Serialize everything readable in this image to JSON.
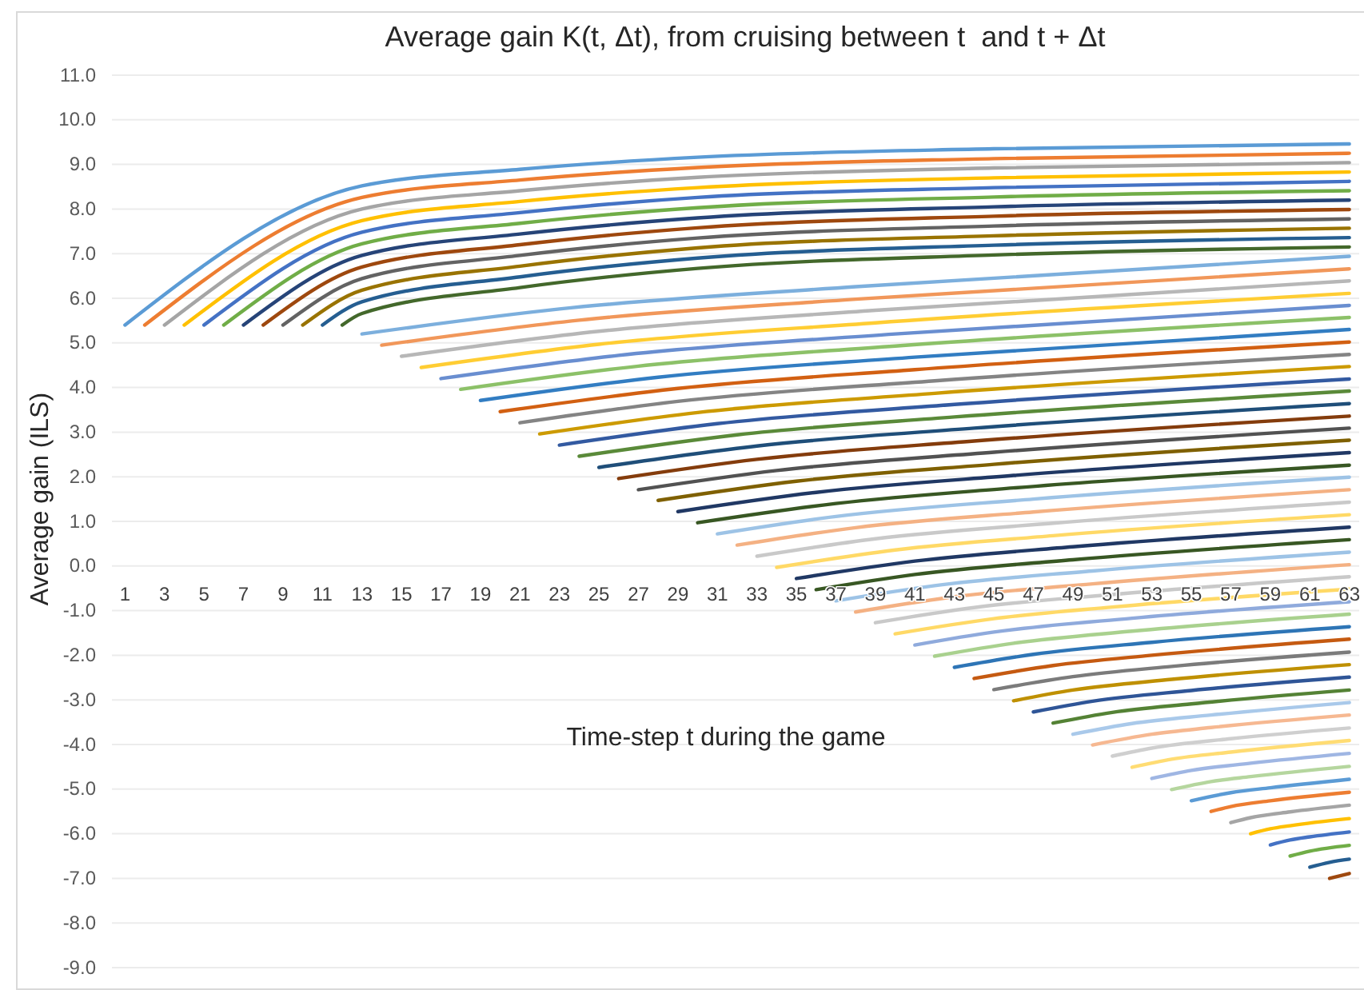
{
  "chart_data": {
    "type": "line",
    "title": "Average gain K(t, Δt), from cruising between t  and t + Δt",
    "xlabel": "Time-step t during the game",
    "ylabel": "Average gain  (ILS)",
    "xlim": [
      0.5,
      63.5
    ],
    "xticks": [
      1,
      3,
      5,
      7,
      9,
      11,
      13,
      15,
      17,
      19,
      21,
      23,
      25,
      27,
      29,
      31,
      33,
      35,
      37,
      39,
      41,
      43,
      45,
      47,
      49,
      51,
      53,
      55,
      57,
      59,
      61,
      63
    ],
    "ylim": [
      -9,
      11
    ],
    "yticks": [
      {
        "value": -9,
        "label": "-9.0"
      },
      {
        "value": -8,
        "label": "-8.0"
      },
      {
        "value": -7,
        "label": "-7.0"
      },
      {
        "value": -6,
        "label": "-6.0"
      },
      {
        "value": -5,
        "label": "-5.0"
      },
      {
        "value": -4,
        "label": "-4.0"
      },
      {
        "value": -3,
        "label": "-3.0"
      },
      {
        "value": -2,
        "label": "-2.0"
      },
      {
        "value": -1,
        "label": "-1.0"
      },
      {
        "value": 0,
        "label": "0.0"
      },
      {
        "value": 1,
        "label": "1.0"
      },
      {
        "value": 2,
        "label": "2.0"
      },
      {
        "value": 3,
        "label": "3.0"
      },
      {
        "value": 4,
        "label": "4.0"
      },
      {
        "value": 5,
        "label": "5.0"
      },
      {
        "value": 6,
        "label": "6.0"
      },
      {
        "value": 7,
        "label": "7.0"
      },
      {
        "value": 8,
        "label": "8.0"
      },
      {
        "value": 9,
        "label": "9.0"
      },
      {
        "value": 10,
        "label": "10.0"
      },
      {
        "value": 11,
        "label": "11.0"
      }
    ],
    "grid": "y",
    "series": [
      {
        "color": "#5b9bd5",
        "x": [
          1,
          13,
          21,
          30,
          45,
          63
        ],
        "values": [
          5.4,
          8.52,
          8.89,
          9.16,
          9.35,
          9.46
        ]
      },
      {
        "color": "#ed7d31",
        "x": [
          2,
          13,
          21,
          30,
          45,
          63
        ],
        "values": [
          5.4,
          8.26,
          8.65,
          8.93,
          9.13,
          9.25
        ]
      },
      {
        "color": "#a5a5a5",
        "x": [
          3,
          13,
          21,
          30,
          45,
          63
        ],
        "values": [
          5.4,
          8.0,
          8.41,
          8.71,
          8.92,
          9.04
        ]
      },
      {
        "color": "#ffc000",
        "x": [
          4,
          13,
          21,
          30,
          45,
          63
        ],
        "values": [
          5.4,
          7.74,
          8.17,
          8.48,
          8.7,
          8.83
        ]
      },
      {
        "color": "#4472c4",
        "x": [
          5,
          13,
          21,
          30,
          45,
          63
        ],
        "values": [
          5.4,
          7.48,
          7.92,
          8.26,
          8.48,
          8.62
        ]
      },
      {
        "color": "#70ad47",
        "x": [
          6,
          13,
          21,
          30,
          45,
          63
        ],
        "values": [
          5.4,
          7.22,
          7.68,
          8.03,
          8.27,
          8.41
        ]
      },
      {
        "color": "#264478",
        "x": [
          7,
          13,
          21,
          30,
          45,
          63
        ],
        "values": [
          5.4,
          6.96,
          7.44,
          7.8,
          8.05,
          8.2
        ]
      },
      {
        "color": "#9e480e",
        "x": [
          8,
          13,
          21,
          30,
          45,
          63
        ],
        "values": [
          5.4,
          6.7,
          7.2,
          7.58,
          7.84,
          7.99
        ]
      },
      {
        "color": "#636363",
        "x": [
          9,
          13,
          21,
          30,
          45,
          63
        ],
        "values": [
          5.4,
          6.44,
          6.96,
          7.35,
          7.62,
          7.78
        ]
      },
      {
        "color": "#997300",
        "x": [
          10,
          13,
          21,
          30,
          45,
          63
        ],
        "values": [
          5.4,
          6.18,
          6.72,
          7.13,
          7.4,
          7.57
        ]
      },
      {
        "color": "#255e91",
        "x": [
          11,
          13,
          21,
          30,
          45,
          63
        ],
        "values": [
          5.4,
          5.92,
          6.48,
          6.9,
          7.19,
          7.36
        ]
      },
      {
        "color": "#43682b",
        "x": [
          12,
          13,
          21,
          30,
          45,
          63
        ],
        "values": [
          5.4,
          5.66,
          6.24,
          6.67,
          6.97,
          7.15
        ]
      },
      {
        "color": "#7cafdd",
        "x": [
          13,
          23,
          38,
          63
        ],
        "values": [
          5.2,
          5.76,
          6.26,
          6.94
        ]
      },
      {
        "color": "#f1975a",
        "x": [
          14,
          24,
          38,
          63
        ],
        "values": [
          4.95,
          5.51,
          5.98,
          6.66
        ]
      },
      {
        "color": "#b7b7b7",
        "x": [
          15,
          25,
          39,
          63
        ],
        "values": [
          4.7,
          5.26,
          5.73,
          6.39
        ]
      },
      {
        "color": "#ffcd33",
        "x": [
          16,
          25,
          39,
          63
        ],
        "values": [
          4.45,
          4.97,
          5.45,
          6.11
        ]
      },
      {
        "color": "#698ed0",
        "x": [
          17,
          26,
          40,
          63
        ],
        "values": [
          4.2,
          4.72,
          5.2,
          5.84
        ]
      },
      {
        "color": "#8cc168",
        "x": [
          18,
          27,
          40,
          63
        ],
        "values": [
          3.96,
          4.48,
          4.93,
          5.57
        ]
      },
      {
        "color": "#327dc2",
        "x": [
          19,
          28,
          41,
          63
        ],
        "values": [
          3.71,
          4.23,
          4.68,
          5.3
        ]
      },
      {
        "color": "#d26012",
        "x": [
          20,
          29,
          41,
          63
        ],
        "values": [
          3.46,
          3.98,
          4.4,
          5.02
        ]
      },
      {
        "color": "#848484",
        "x": [
          21,
          29,
          42,
          63
        ],
        "values": [
          3.21,
          3.69,
          4.15,
          4.74
        ]
      },
      {
        "color": "#cc9a00",
        "x": [
          22,
          30,
          42,
          63
        ],
        "values": [
          2.96,
          3.44,
          3.87,
          4.47
        ]
      },
      {
        "color": "#335aa1",
        "x": [
          23,
          31,
          43,
          63
        ],
        "values": [
          2.71,
          3.19,
          3.62,
          4.19
        ]
      },
      {
        "color": "#5a8a39",
        "x": [
          24,
          32,
          43,
          63
        ],
        "values": [
          2.46,
          2.94,
          3.34,
          3.92
        ]
      },
      {
        "color": "#1f4e79",
        "x": [
          25,
          33,
          44,
          63
        ],
        "values": [
          2.21,
          2.69,
          3.09,
          3.64
        ]
      },
      {
        "color": "#843c0c",
        "x": [
          26,
          33,
          44,
          63
        ],
        "values": [
          1.96,
          2.39,
          2.8,
          3.36
        ]
      },
      {
        "color": "#525252",
        "x": [
          27,
          34,
          45,
          63
        ],
        "values": [
          1.71,
          2.14,
          2.55,
          3.09
        ]
      },
      {
        "color": "#7f6000",
        "x": [
          28,
          35,
          45,
          63
        ],
        "values": [
          1.47,
          1.9,
          2.28,
          2.82
        ]
      },
      {
        "color": "#203864",
        "x": [
          29,
          36,
          46,
          63
        ],
        "values": [
          1.22,
          1.65,
          2.03,
          2.54
        ]
      },
      {
        "color": "#385723",
        "x": [
          30,
          37,
          46,
          63
        ],
        "values": [
          0.97,
          1.4,
          1.75,
          2.26
        ]
      },
      {
        "color": "#9dc3e6",
        "x": [
          31,
          37,
          47,
          63
        ],
        "values": [
          0.72,
          1.11,
          1.5,
          1.99
        ]
      },
      {
        "color": "#f4b183",
        "x": [
          32,
          38,
          47,
          63
        ],
        "values": [
          0.47,
          0.86,
          1.21,
          1.71
        ]
      },
      {
        "color": "#c9c9c9",
        "x": [
          33,
          39,
          48,
          63
        ],
        "values": [
          0.22,
          0.61,
          0.96,
          1.43
        ]
      },
      {
        "color": "#ffd966",
        "x": [
          34,
          40,
          48,
          63
        ],
        "values": [
          -0.03,
          0.36,
          0.68,
          1.15
        ]
      },
      {
        "color": "#203864",
        "x": [
          35,
          41,
          49,
          63
        ],
        "values": [
          -0.28,
          0.11,
          0.43,
          0.87
        ]
      },
      {
        "color": "#385723",
        "x": [
          36,
          41,
          49,
          63
        ],
        "values": [
          -0.53,
          -0.19,
          0.14,
          0.59
        ]
      },
      {
        "color": "#9dc3e6",
        "x": [
          37,
          42,
          50,
          63
        ],
        "values": [
          -0.78,
          -0.44,
          -0.11,
          0.31
        ]
      },
      {
        "color": "#f4b183",
        "x": [
          38,
          43,
          50,
          63
        ],
        "values": [
          -1.03,
          -0.69,
          -0.4,
          0.03
        ]
      },
      {
        "color": "#c9c9c9",
        "x": [
          39,
          44,
          51,
          63
        ],
        "values": [
          -1.27,
          -0.93,
          -0.64,
          -0.24
        ]
      },
      {
        "color": "#ffd966",
        "x": [
          40,
          45,
          51,
          63
        ],
        "values": [
          -1.52,
          -1.18,
          -0.92,
          -0.52
        ]
      },
      {
        "color": "#8faadc",
        "x": [
          41,
          45,
          52,
          63
        ],
        "values": [
          -1.77,
          -1.48,
          -1.17,
          -0.8
        ]
      },
      {
        "color": "#a9d18e",
        "x": [
          42,
          46,
          52,
          63
        ],
        "values": [
          -2.02,
          -1.73,
          -1.46,
          -1.08
        ]
      },
      {
        "color": "#2e75b6",
        "x": [
          43,
          47,
          53,
          63
        ],
        "values": [
          -2.27,
          -1.98,
          -1.71,
          -1.36
        ]
      },
      {
        "color": "#c55a11",
        "x": [
          44,
          48,
          53,
          63
        ],
        "values": [
          -2.52,
          -2.23,
          -2.0,
          -1.64
        ]
      },
      {
        "color": "#7b7b7b",
        "x": [
          45,
          49,
          54,
          63
        ],
        "values": [
          -2.77,
          -2.48,
          -2.25,
          -1.93
        ]
      },
      {
        "color": "#bf9000",
        "x": [
          46,
          49,
          54,
          63
        ],
        "values": [
          -3.02,
          -2.78,
          -2.54,
          -2.21
        ]
      },
      {
        "color": "#2f5597",
        "x": [
          47,
          50,
          55,
          63
        ],
        "values": [
          -3.27,
          -3.03,
          -2.79,
          -2.49
        ]
      },
      {
        "color": "#548235",
        "x": [
          48,
          51,
          55,
          63
        ],
        "values": [
          -3.52,
          -3.28,
          -3.09,
          -2.78
        ]
      },
      {
        "color": "#a9c9ea",
        "x": [
          49,
          52,
          56,
          63
        ],
        "values": [
          -3.77,
          -3.53,
          -3.34,
          -3.06
        ]
      },
      {
        "color": "#f6b891",
        "x": [
          50,
          53,
          56,
          63
        ],
        "values": [
          -4.01,
          -3.77,
          -3.62,
          -3.34
        ]
      },
      {
        "color": "#cfcfcf",
        "x": [
          51,
          53,
          57,
          63
        ],
        "values": [
          -4.26,
          -4.08,
          -3.87,
          -3.63
        ]
      },
      {
        "color": "#ffdc73",
        "x": [
          52,
          54,
          57,
          63
        ],
        "values": [
          -4.51,
          -4.33,
          -4.17,
          -3.91
        ]
      },
      {
        "color": "#9fb6e3",
        "x": [
          53,
          55,
          58,
          63
        ],
        "values": [
          -4.76,
          -4.58,
          -4.42,
          -4.2
        ]
      },
      {
        "color": "#b5d69e",
        "x": [
          54,
          56,
          58,
          63
        ],
        "values": [
          -5.01,
          -4.83,
          -4.72,
          -4.49
        ]
      },
      {
        "color": "#5b9bd5",
        "x": [
          55,
          57,
          59,
          63
        ],
        "values": [
          -5.26,
          -5.08,
          -4.97,
          -4.78
        ]
      },
      {
        "color": "#ed7d31",
        "x": [
          56,
          57,
          59,
          63
        ],
        "values": [
          -5.5,
          -5.39,
          -5.26,
          -5.07
        ]
      },
      {
        "color": "#a5a5a5",
        "x": [
          57,
          58,
          60,
          63
        ],
        "values": [
          -5.75,
          -5.64,
          -5.51,
          -5.36
        ]
      },
      {
        "color": "#ffc000",
        "x": [
          58,
          59,
          60,
          63
        ],
        "values": [
          -6.0,
          -5.89,
          -5.82,
          -5.66
        ]
      },
      {
        "color": "#4472c4",
        "x": [
          59,
          60,
          61,
          63
        ],
        "values": [
          -6.25,
          -6.14,
          -6.07,
          -5.96
        ]
      },
      {
        "color": "#70ad47",
        "x": [
          60,
          61,
          63
        ],
        "values": [
          -6.5,
          -6.39,
          -6.26
        ]
      },
      {
        "color": "#255e91",
        "x": [
          61,
          62,
          63
        ],
        "values": [
          -6.75,
          -6.64,
          -6.57
        ]
      },
      {
        "color": "#9e480e",
        "x": [
          62,
          63
        ],
        "values": [
          -7.0,
          -6.89
        ]
      }
    ]
  }
}
